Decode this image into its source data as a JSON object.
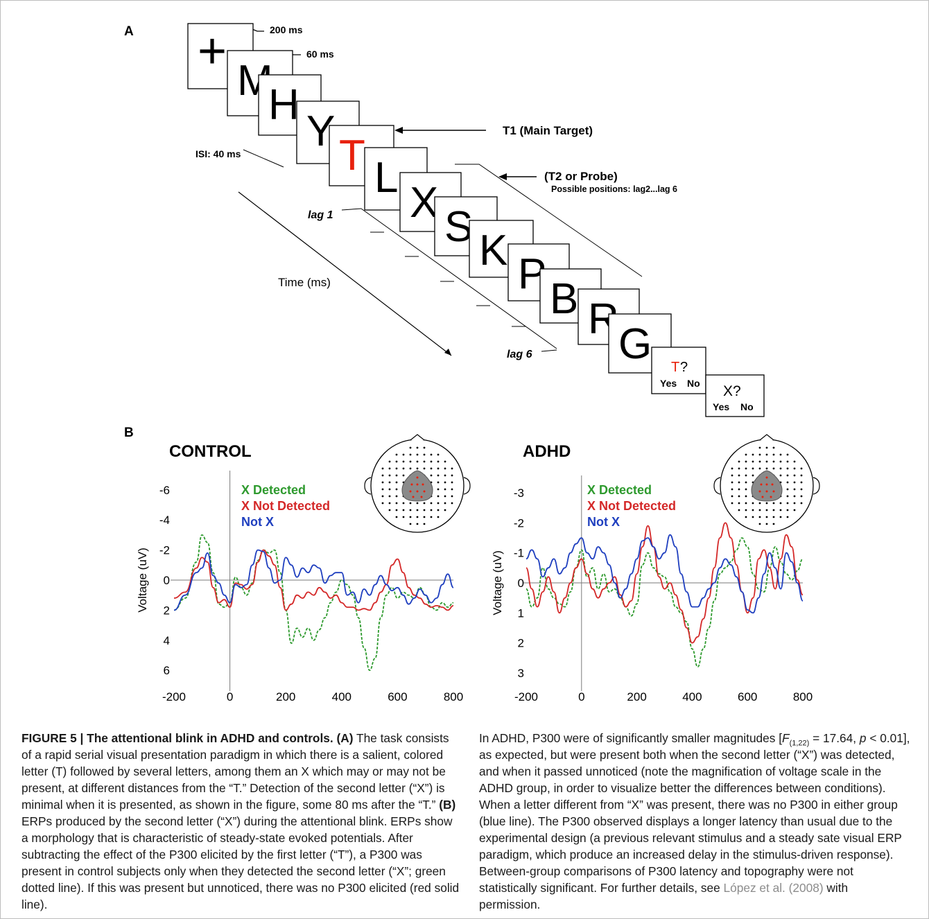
{
  "panel_a": {
    "label": "A",
    "frames": [
      "+",
      "M",
      "H",
      "Y",
      "T",
      "L",
      "X",
      "S",
      "K",
      "P",
      "B",
      "R",
      "G"
    ],
    "timing_200": "200 ms",
    "timing_60": "60 ms",
    "isi": "ISI: 40 ms",
    "t1_label": "T1 (Main Target)",
    "t2_label": "(T2 or Probe)",
    "t2_sub": "Possible positions: lag2...lag 6",
    "lag1": "lag 1",
    "lag6": "lag 6",
    "time_label": "Time (ms)",
    "q1_letter": "T",
    "q1_mark": "?",
    "q1_yes": "Yes",
    "q1_no": "No",
    "q2_letter": "X?",
    "q2_yes": "Yes",
    "q2_no": "No",
    "colors": {
      "target": "#e8210c",
      "frame_border": "#000000"
    }
  },
  "panel_b": {
    "label": "B"
  },
  "chart_data": [
    {
      "type": "line",
      "title": "CONTROL",
      "ylabel": "Voltage (uV)",
      "xlabel": "",
      "xlim": [
        -200,
        800
      ],
      "ylim": [
        -7,
        7.5
      ],
      "y_inverted": true,
      "x_ticks": [
        "-200",
        "0",
        "200",
        "400",
        "600",
        "800"
      ],
      "y_ticks": [
        "-6",
        "-4",
        "-2",
        "0",
        "2",
        "4",
        "6"
      ],
      "legend_position": "top-left inside plot",
      "series": [
        {
          "name": "X Detected",
          "color": "#2e9a2e",
          "dash": "dotted",
          "x": [
            -200,
            -160,
            -120,
            -100,
            -80,
            -60,
            -40,
            -20,
            0,
            20,
            40,
            60,
            80,
            100,
            120,
            140,
            160,
            180,
            200,
            220,
            240,
            260,
            280,
            300,
            320,
            340,
            360,
            380,
            400,
            420,
            440,
            460,
            480,
            500,
            520,
            540,
            560,
            580,
            600,
            620,
            640,
            660,
            680,
            700,
            720,
            740,
            760,
            780,
            800
          ],
          "y": [
            2.0,
            1.2,
            -1.2,
            -3.0,
            -2.5,
            -0.5,
            1.6,
            1.8,
            1.5,
            -0.2,
            0.5,
            1.0,
            0.2,
            -1.3,
            -2.0,
            -1.8,
            -2.0,
            -0.5,
            2.0,
            4.2,
            3.2,
            3.8,
            3.2,
            4.0,
            3.3,
            2.5,
            1.5,
            0.8,
            0.0,
            0.3,
            1.0,
            2.5,
            4.5,
            6.0,
            5.2,
            2.5,
            1.0,
            0.5,
            1.2,
            0.8,
            1.0,
            1.2,
            0.5,
            1.0,
            1.8,
            2.0,
            1.5,
            1.8,
            1.5
          ]
        },
        {
          "name": "X Not Detected",
          "color": "#d42828",
          "dash": "solid",
          "x": [
            -200,
            -160,
            -120,
            -100,
            -80,
            -60,
            -40,
            -20,
            0,
            20,
            40,
            60,
            80,
            100,
            120,
            140,
            160,
            180,
            200,
            220,
            240,
            260,
            280,
            300,
            320,
            340,
            360,
            380,
            400,
            420,
            440,
            460,
            480,
            500,
            520,
            540,
            560,
            580,
            600,
            620,
            640,
            660,
            680,
            700,
            720,
            740,
            760,
            780,
            800
          ],
          "y": [
            1.2,
            0.8,
            -0.8,
            -1.5,
            -1.2,
            0.5,
            1.5,
            1.3,
            1.8,
            0.2,
            0.3,
            0.6,
            0.3,
            -1.2,
            -2.0,
            -1.6,
            -1.0,
            0.5,
            2.0,
            1.6,
            1.0,
            1.2,
            0.8,
            1.0,
            0.5,
            0.8,
            1.2,
            1.0,
            1.5,
            1.8,
            1.8,
            2.0,
            1.9,
            2.0,
            1.5,
            0.8,
            0.3,
            -1.0,
            -1.4,
            -0.5,
            0.5,
            1.0,
            1.2,
            1.6,
            1.8,
            1.7,
            1.8,
            2.0,
            1.7
          ]
        },
        {
          "name": "Not X",
          "color": "#1f3fbf",
          "dash": "solid",
          "x": [
            -200,
            -160,
            -120,
            -100,
            -80,
            -60,
            -40,
            -20,
            0,
            20,
            40,
            60,
            80,
            100,
            120,
            140,
            160,
            180,
            200,
            220,
            240,
            260,
            280,
            300,
            320,
            340,
            360,
            380,
            400,
            420,
            440,
            460,
            480,
            500,
            520,
            540,
            560,
            580,
            600,
            620,
            640,
            660,
            680,
            700,
            720,
            740,
            760,
            780,
            800
          ],
          "y": [
            2.0,
            1.0,
            -0.5,
            -0.8,
            -1.8,
            -0.3,
            0.2,
            1.0,
            1.5,
            0.3,
            0.5,
            0.3,
            -1.0,
            -2.0,
            -1.9,
            -0.8,
            0.2,
            0.0,
            -1.5,
            -1.0,
            -0.2,
            -0.8,
            -0.5,
            -1.0,
            -0.8,
            0.2,
            -0.3,
            -0.5,
            -0.5,
            1.0,
            0.8,
            1.5,
            0.6,
            1.0,
            0.3,
            -0.3,
            0.3,
            0.7,
            0.5,
            1.0,
            1.6,
            1.2,
            0.6,
            1.0,
            1.5,
            1.2,
            0.3,
            -0.4,
            0.5
          ]
        }
      ]
    },
    {
      "type": "line",
      "title": "ADHD",
      "ylabel": "Voltage (uV)",
      "xlabel": "",
      "xlim": [
        -200,
        800
      ],
      "ylim": [
        -3.6,
        3.3
      ],
      "y_inverted": true,
      "x_ticks": [
        "-200",
        "0",
        "200",
        "400",
        "600",
        "800"
      ],
      "y_ticks": [
        "-3",
        "-2",
        "-1",
        "0",
        "1",
        "2",
        "3"
      ],
      "legend_position": "top-left inside plot",
      "series": [
        {
          "name": "X Detected",
          "color": "#2e9a2e",
          "dash": "dotted",
          "x": [
            -200,
            -180,
            -160,
            -140,
            -120,
            -100,
            -80,
            -60,
            -40,
            -20,
            0,
            20,
            40,
            60,
            80,
            100,
            120,
            140,
            160,
            180,
            200,
            220,
            240,
            260,
            280,
            300,
            320,
            340,
            360,
            380,
            400,
            420,
            440,
            460,
            480,
            500,
            520,
            540,
            560,
            580,
            600,
            620,
            640,
            660,
            680,
            700,
            720,
            740,
            760,
            780,
            800
          ],
          "y": [
            0.2,
            0.8,
            0.5,
            -0.5,
            0.2,
            0.5,
            0.7,
            0.8,
            0.3,
            -0.5,
            -1.1,
            -0.2,
            -0.5,
            0.2,
            -0.3,
            0.3,
            0.2,
            0.5,
            0.8,
            1.1,
            0.7,
            -0.6,
            -1.0,
            -0.5,
            -0.3,
            -0.2,
            0.3,
            0.8,
            1.0,
            1.3,
            2.2,
            2.8,
            2.2,
            1.5,
            0.6,
            -0.3,
            -0.5,
            -0.7,
            -1.1,
            -1.5,
            -1.2,
            -0.3,
            0.2,
            0.3,
            -0.5,
            -1.2,
            -0.7,
            -0.3,
            -0.1,
            -0.4,
            -0.8
          ]
        },
        {
          "name": "X Not Detected",
          "color": "#d42828",
          "dash": "solid",
          "x": [
            -200,
            -180,
            -160,
            -140,
            -120,
            -100,
            -80,
            -60,
            -40,
            -20,
            0,
            20,
            40,
            60,
            80,
            100,
            120,
            140,
            160,
            180,
            200,
            220,
            240,
            260,
            280,
            300,
            320,
            340,
            360,
            380,
            400,
            420,
            440,
            460,
            480,
            500,
            520,
            540,
            560,
            580,
            600,
            620,
            640,
            660,
            680,
            700,
            720,
            740,
            760,
            780,
            800
          ],
          "y": [
            -0.5,
            0.2,
            0.8,
            0.3,
            -0.2,
            0.3,
            1.0,
            0.5,
            0.0,
            -0.5,
            -0.8,
            -0.3,
            0.2,
            0.5,
            0.2,
            0.0,
            -0.2,
            0.4,
            0.8,
            0.6,
            -0.3,
            -1.2,
            -1.9,
            -1.2,
            -0.2,
            0.2,
            0.0,
            0.4,
            0.9,
            1.5,
            2.0,
            1.8,
            1.2,
            0.5,
            -0.5,
            -1.5,
            -2.0,
            -1.5,
            -0.6,
            0.3,
            1.0,
            0.5,
            -0.8,
            -1.1,
            -0.5,
            0.2,
            -0.8,
            -1.6,
            -1.2,
            -0.1,
            0.4
          ]
        },
        {
          "name": "Not X",
          "color": "#1f3fbf",
          "dash": "solid",
          "x": [
            -200,
            -180,
            -160,
            -140,
            -120,
            -100,
            -80,
            -60,
            -40,
            -20,
            0,
            20,
            40,
            60,
            80,
            100,
            120,
            140,
            160,
            180,
            200,
            220,
            240,
            260,
            280,
            300,
            320,
            340,
            360,
            380,
            400,
            420,
            440,
            460,
            480,
            500,
            520,
            540,
            560,
            580,
            600,
            620,
            640,
            660,
            680,
            700,
            720,
            740,
            760,
            780,
            800
          ],
          "y": [
            -0.8,
            -1.1,
            -0.8,
            -0.2,
            -0.5,
            -0.8,
            -0.3,
            -0.5,
            -1.0,
            -1.3,
            -1.5,
            -1.0,
            -0.8,
            -1.2,
            -1.0,
            -0.6,
            0.0,
            0.5,
            0.2,
            -0.3,
            -0.8,
            -1.4,
            -1.5,
            -1.2,
            -0.8,
            -1.0,
            -1.6,
            -1.2,
            -0.3,
            0.3,
            0.8,
            0.8,
            0.5,
            0.2,
            0.0,
            -0.5,
            -0.8,
            -0.6,
            -0.2,
            0.3,
            0.9,
            1.0,
            0.5,
            -0.3,
            -1.0,
            -0.5,
            0.2,
            -1.0,
            -0.7,
            0.0,
            0.6
          ]
        }
      ]
    }
  ],
  "caption": {
    "fig_label": "FIGURE 5 | The attentional blink in ADHD and controls.",
    "left_p1_bold_a": "(A)",
    "left_p1_text": "The task consists of a rapid serial visual presentation paradigm in which there is a salient, colored letter (T) followed by several letters, among them an X which may or may not be present, at different distances from the “T.” Detection of the second letter (“X”) is minimal when it is presented, as shown in the figure, some 80 ms after the “T.”",
    "left_p1_bold_b": "(B)",
    "left_p1_text_b": "ERPs produced by the second letter (“X”) during the attentional blink. ERPs show a morphology that is characteristic of steady-state evoked potentials. After subtracting the effect of the P300 elicited by the first letter (“T”), a P300 was present in control subjects only when they detected the second letter (“X”; green dotted line). If this was present but unnoticed, there was no P300 elicited (red solid line).",
    "right_text_1": "In ADHD, P300 were of significantly smaller magnitudes [",
    "right_stat_F": "F",
    "right_stat_sub": "(1,22)",
    "right_text_2": " = 17.64, ",
    "right_stat_p": "p",
    "right_text_3": " < 0.01], as expected, but were present both when the second letter (“X”) was detected, and when it passed unnoticed (note the magnification of voltage scale in the ADHD group, in order to visualize better the differences between conditions). When a letter different from “X” was present, there was no P300 in either group (blue line). The P300 observed displays a longer latency than usual due to the experimental design (a previous relevant stimulus and a steady sate visual ERP paradigm, which produce an increased delay in the stimulus-driven response). Between-group comparisons of P300 latency and topography were not statistically significant. For further details, see ",
    "right_link": "López et al. (2008)",
    "right_text_4": " with permission."
  }
}
